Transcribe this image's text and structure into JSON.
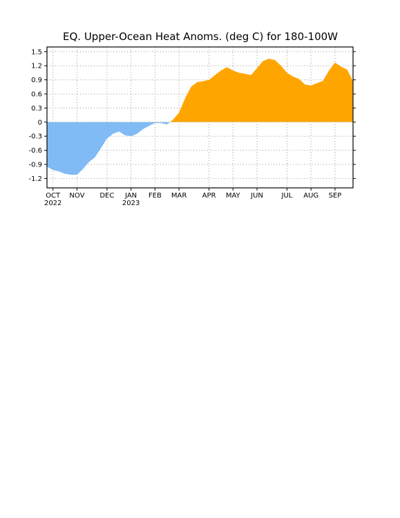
{
  "chart_data": {
    "type": "area",
    "title": "EQ. Upper-Ocean Heat Anoms. (deg C) for 180-100W",
    "categories": [
      null,
      "OCT 2022",
      null,
      null,
      null,
      "NOV",
      null,
      null,
      null,
      null,
      "DEC",
      null,
      null,
      null,
      "JAN 2023",
      null,
      null,
      null,
      "FEB",
      null,
      null,
      null,
      "MAR",
      null,
      null,
      null,
      null,
      "APR",
      null,
      null,
      null,
      "MAY",
      null,
      null,
      null,
      "JUN",
      null,
      null,
      null,
      null,
      "JUL",
      null,
      null,
      null,
      "AUG",
      null,
      null,
      null,
      "SEP",
      null,
      null,
      null
    ],
    "values": [
      -0.95,
      -1.02,
      -1.05,
      -1.1,
      -1.12,
      -1.12,
      -1.0,
      -0.85,
      -0.75,
      -0.55,
      -0.35,
      -0.25,
      -0.2,
      -0.28,
      -0.3,
      -0.25,
      -0.15,
      -0.08,
      -0.02,
      -0.02,
      -0.05,
      0.05,
      0.2,
      0.5,
      0.75,
      0.85,
      0.87,
      0.9,
      1.0,
      1.1,
      1.17,
      1.1,
      1.05,
      1.03,
      1.0,
      1.15,
      1.3,
      1.35,
      1.32,
      1.2,
      1.05,
      0.97,
      0.92,
      0.8,
      0.78,
      0.83,
      0.88,
      1.1,
      1.27,
      1.18,
      1.12,
      0.87
    ],
    "positive_color": "#ffa500",
    "negative_color": "#80bbf5",
    "ylim": [
      -1.4,
      1.6
    ],
    "yticks": [
      -1.2,
      -0.9,
      -0.6,
      -0.3,
      0,
      0.3,
      0.6,
      0.9,
      1.2,
      1.5
    ],
    "grid": true
  }
}
